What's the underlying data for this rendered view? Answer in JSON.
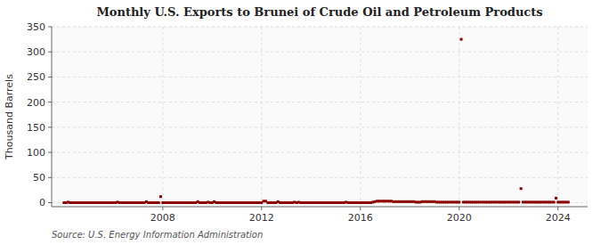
{
  "chart_data": {
    "type": "scatter",
    "title": "Monthly U.S. Exports to Brunei of Crude Oil and Petroleum Products",
    "y_label": "Thousand Barrels",
    "source": "Source: U.S. Energy Information Administration",
    "color": "#8b0000",
    "marker": "square",
    "grid": true,
    "xlim": [
      2003.5,
      2025.2
    ],
    "xticks": [
      2008,
      2012,
      2016,
      2020,
      2024
    ],
    "ylim": [
      -8,
      350
    ],
    "yticks": [
      0,
      50,
      100,
      150,
      200,
      250,
      300,
      350
    ],
    "x": [
      2004.0,
      2004.083,
      2004.167,
      2004.25,
      2004.333,
      2004.417,
      2004.5,
      2004.583,
      2004.667,
      2004.75,
      2004.833,
      2004.917,
      2005.0,
      2005.083,
      2005.167,
      2005.25,
      2005.333,
      2005.417,
      2005.5,
      2005.583,
      2005.667,
      2005.75,
      2005.833,
      2005.917,
      2006.0,
      2006.083,
      2006.167,
      2006.25,
      2006.333,
      2006.417,
      2006.5,
      2006.583,
      2006.667,
      2006.75,
      2006.833,
      2006.917,
      2007.0,
      2007.083,
      2007.167,
      2007.25,
      2007.333,
      2007.417,
      2007.5,
      2007.583,
      2007.667,
      2007.75,
      2007.833,
      2007.917,
      2008.0,
      2008.083,
      2008.167,
      2008.25,
      2008.333,
      2008.417,
      2008.5,
      2008.583,
      2008.667,
      2008.75,
      2008.833,
      2008.917,
      2009.0,
      2009.083,
      2009.167,
      2009.25,
      2009.333,
      2009.417,
      2009.5,
      2009.583,
      2009.667,
      2009.75,
      2009.833,
      2009.917,
      2010.0,
      2010.083,
      2010.167,
      2010.25,
      2010.333,
      2010.417,
      2010.5,
      2010.583,
      2010.667,
      2010.75,
      2010.833,
      2010.917,
      2011.0,
      2011.083,
      2011.167,
      2011.25,
      2011.333,
      2011.417,
      2011.5,
      2011.583,
      2011.667,
      2011.75,
      2011.833,
      2011.917,
      2012.0,
      2012.083,
      2012.167,
      2012.25,
      2012.333,
      2012.417,
      2012.5,
      2012.583,
      2012.667,
      2012.75,
      2012.833,
      2012.917,
      2013.0,
      2013.083,
      2013.167,
      2013.25,
      2013.333,
      2013.417,
      2013.5,
      2013.583,
      2013.667,
      2013.75,
      2013.833,
      2013.917,
      2014.0,
      2014.083,
      2014.167,
      2014.25,
      2014.333,
      2014.417,
      2014.5,
      2014.583,
      2014.667,
      2014.75,
      2014.833,
      2014.917,
      2015.0,
      2015.083,
      2015.167,
      2015.25,
      2015.333,
      2015.417,
      2015.5,
      2015.583,
      2015.667,
      2015.75,
      2015.833,
      2015.917,
      2016.0,
      2016.083,
      2016.167,
      2016.25,
      2016.333,
      2016.417,
      2016.5,
      2016.583,
      2016.667,
      2016.75,
      2016.833,
      2016.917,
      2017.0,
      2017.083,
      2017.167,
      2017.25,
      2017.333,
      2017.417,
      2017.5,
      2017.583,
      2017.667,
      2017.75,
      2017.833,
      2017.917,
      2018.0,
      2018.083,
      2018.167,
      2018.25,
      2018.333,
      2018.417,
      2018.5,
      2018.583,
      2018.667,
      2018.75,
      2018.833,
      2018.917,
      2019.0,
      2019.083,
      2019.167,
      2019.25,
      2019.333,
      2019.417,
      2019.5,
      2019.583,
      2019.667,
      2019.75,
      2019.833,
      2019.917,
      2020.0,
      2020.083,
      2020.167,
      2020.25,
      2020.333,
      2020.417,
      2020.5,
      2020.583,
      2020.667,
      2020.75,
      2020.833,
      2020.917,
      2021.0,
      2021.083,
      2021.167,
      2021.25,
      2021.333,
      2021.417,
      2021.5,
      2021.583,
      2021.667,
      2021.75,
      2021.833,
      2021.917,
      2022.0,
      2022.083,
      2022.167,
      2022.25,
      2022.333,
      2022.417,
      2022.5,
      2022.583,
      2022.667,
      2022.75,
      2022.833,
      2022.917,
      2023.0,
      2023.083,
      2023.167,
      2023.25,
      2023.333,
      2023.417,
      2023.5,
      2023.583,
      2023.667,
      2023.75,
      2023.833,
      2023.917,
      2024.0,
      2024.083,
      2024.167,
      2024.25,
      2024.333,
      2024.417
    ],
    "values": [
      0,
      0,
      1,
      0,
      0,
      0,
      0,
      0,
      0,
      0,
      0,
      0,
      0,
      0,
      0,
      0,
      0,
      0,
      0,
      0,
      0,
      0,
      0,
      0,
      0,
      0,
      1,
      0,
      0,
      0,
      0,
      0,
      0,
      0,
      0,
      0,
      0,
      0,
      0,
      0,
      2,
      0,
      0,
      0,
      0,
      0,
      0,
      12,
      0,
      0,
      0,
      0,
      0,
      0,
      0,
      0,
      0,
      0,
      0,
      0,
      0,
      0,
      0,
      0,
      0,
      2,
      0,
      0,
      0,
      0,
      1,
      0,
      0,
      2,
      0,
      0,
      0,
      0,
      0,
      0,
      0,
      0,
      0,
      0,
      0,
      0,
      0,
      0,
      0,
      0,
      0,
      0,
      0,
      0,
      0,
      0,
      0,
      3,
      3,
      0,
      0,
      0,
      0,
      0,
      2,
      0,
      0,
      0,
      0,
      0,
      0,
      0,
      1,
      0,
      1,
      0,
      0,
      0,
      0,
      0,
      0,
      0,
      0,
      0,
      0,
      0,
      0,
      0,
      0,
      0,
      0,
      0,
      0,
      0,
      0,
      0,
      0,
      1,
      0,
      0,
      0,
      0,
      0,
      0,
      0,
      0,
      0,
      0,
      0,
      0,
      1,
      2,
      3,
      3,
      3,
      3,
      3,
      3,
      3,
      3,
      2,
      2,
      2,
      2,
      2,
      2,
      2,
      2,
      2,
      2,
      2,
      1,
      1,
      1,
      2,
      2,
      2,
      2,
      2,
      2,
      2,
      1,
      1,
      1,
      1,
      1,
      1,
      1,
      1,
      1,
      1,
      1,
      1,
      325,
      1,
      1,
      1,
      1,
      1,
      1,
      1,
      1,
      1,
      1,
      1,
      1,
      1,
      1,
      1,
      1,
      1,
      1,
      1,
      1,
      1,
      1,
      1,
      1,
      1,
      1,
      1,
      1,
      28,
      1,
      1,
      1,
      1,
      1,
      1,
      1,
      1,
      1,
      1,
      1,
      1,
      1,
      1,
      1,
      1,
      9,
      1,
      1,
      1,
      1,
      1,
      1
    ]
  }
}
